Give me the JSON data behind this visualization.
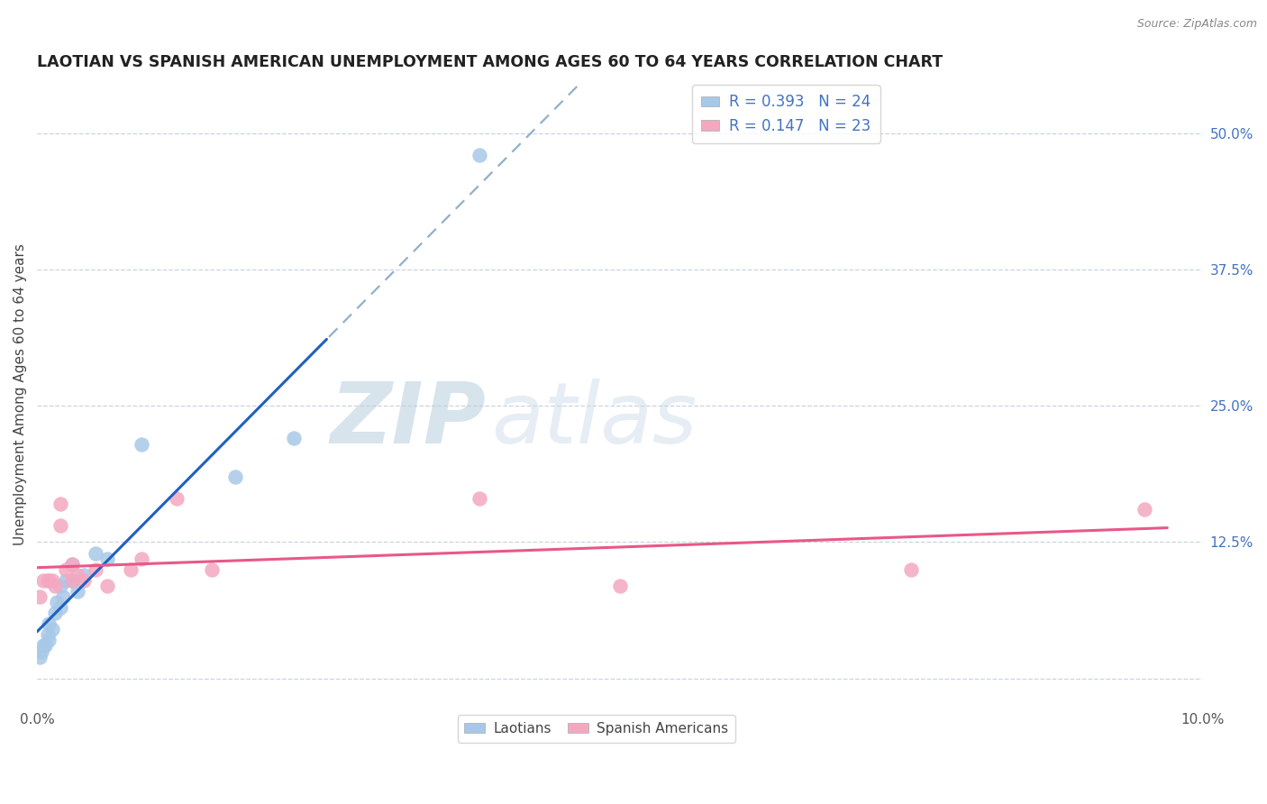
{
  "title": "LAOTIAN VS SPANISH AMERICAN UNEMPLOYMENT AMONG AGES 60 TO 64 YEARS CORRELATION CHART",
  "source": "Source: ZipAtlas.com",
  "ylabel": "Unemployment Among Ages 60 to 64 years",
  "xlim": [
    0.0,
    0.1
  ],
  "ylim": [
    -0.025,
    0.545
  ],
  "r_laotian": 0.393,
  "n_laotian": 24,
  "r_spanish": 0.147,
  "n_spanish": 23,
  "laotian_color": "#a8c8e8",
  "spanish_color": "#f4a8c0",
  "laotian_line_color": "#2060c0",
  "spanish_line_color": "#e85888",
  "dashed_line_color": "#90b0cc",
  "grid_color": "#c8d4e4",
  "tick_color": "#4472c4",
  "background_color": "#ffffff",
  "watermark": "ZIPatlas",
  "laotian_x": [
    0.0002,
    0.0004,
    0.0005,
    0.0007,
    0.0009,
    0.001,
    0.001,
    0.0013,
    0.0015,
    0.0017,
    0.002,
    0.002,
    0.0022,
    0.0025,
    0.003,
    0.003,
    0.0035,
    0.004,
    0.005,
    0.006,
    0.009,
    0.017,
    0.022,
    0.038
  ],
  "laotian_y": [
    0.02,
    0.025,
    0.03,
    0.03,
    0.04,
    0.035,
    0.05,
    0.045,
    0.06,
    0.07,
    0.065,
    0.085,
    0.075,
    0.09,
    0.09,
    0.105,
    0.08,
    0.095,
    0.115,
    0.11,
    0.215,
    0.185,
    0.22,
    0.48
  ],
  "spanish_x": [
    0.0002,
    0.0005,
    0.0009,
    0.001,
    0.0013,
    0.0015,
    0.002,
    0.002,
    0.0025,
    0.003,
    0.003,
    0.0035,
    0.004,
    0.005,
    0.006,
    0.008,
    0.009,
    0.012,
    0.015,
    0.038,
    0.05,
    0.075,
    0.095
  ],
  "spanish_y": [
    0.075,
    0.09,
    0.09,
    0.09,
    0.09,
    0.085,
    0.14,
    0.16,
    0.1,
    0.09,
    0.105,
    0.095,
    0.09,
    0.1,
    0.085,
    0.1,
    0.11,
    0.165,
    0.1,
    0.165,
    0.085,
    0.1,
    0.155
  ]
}
